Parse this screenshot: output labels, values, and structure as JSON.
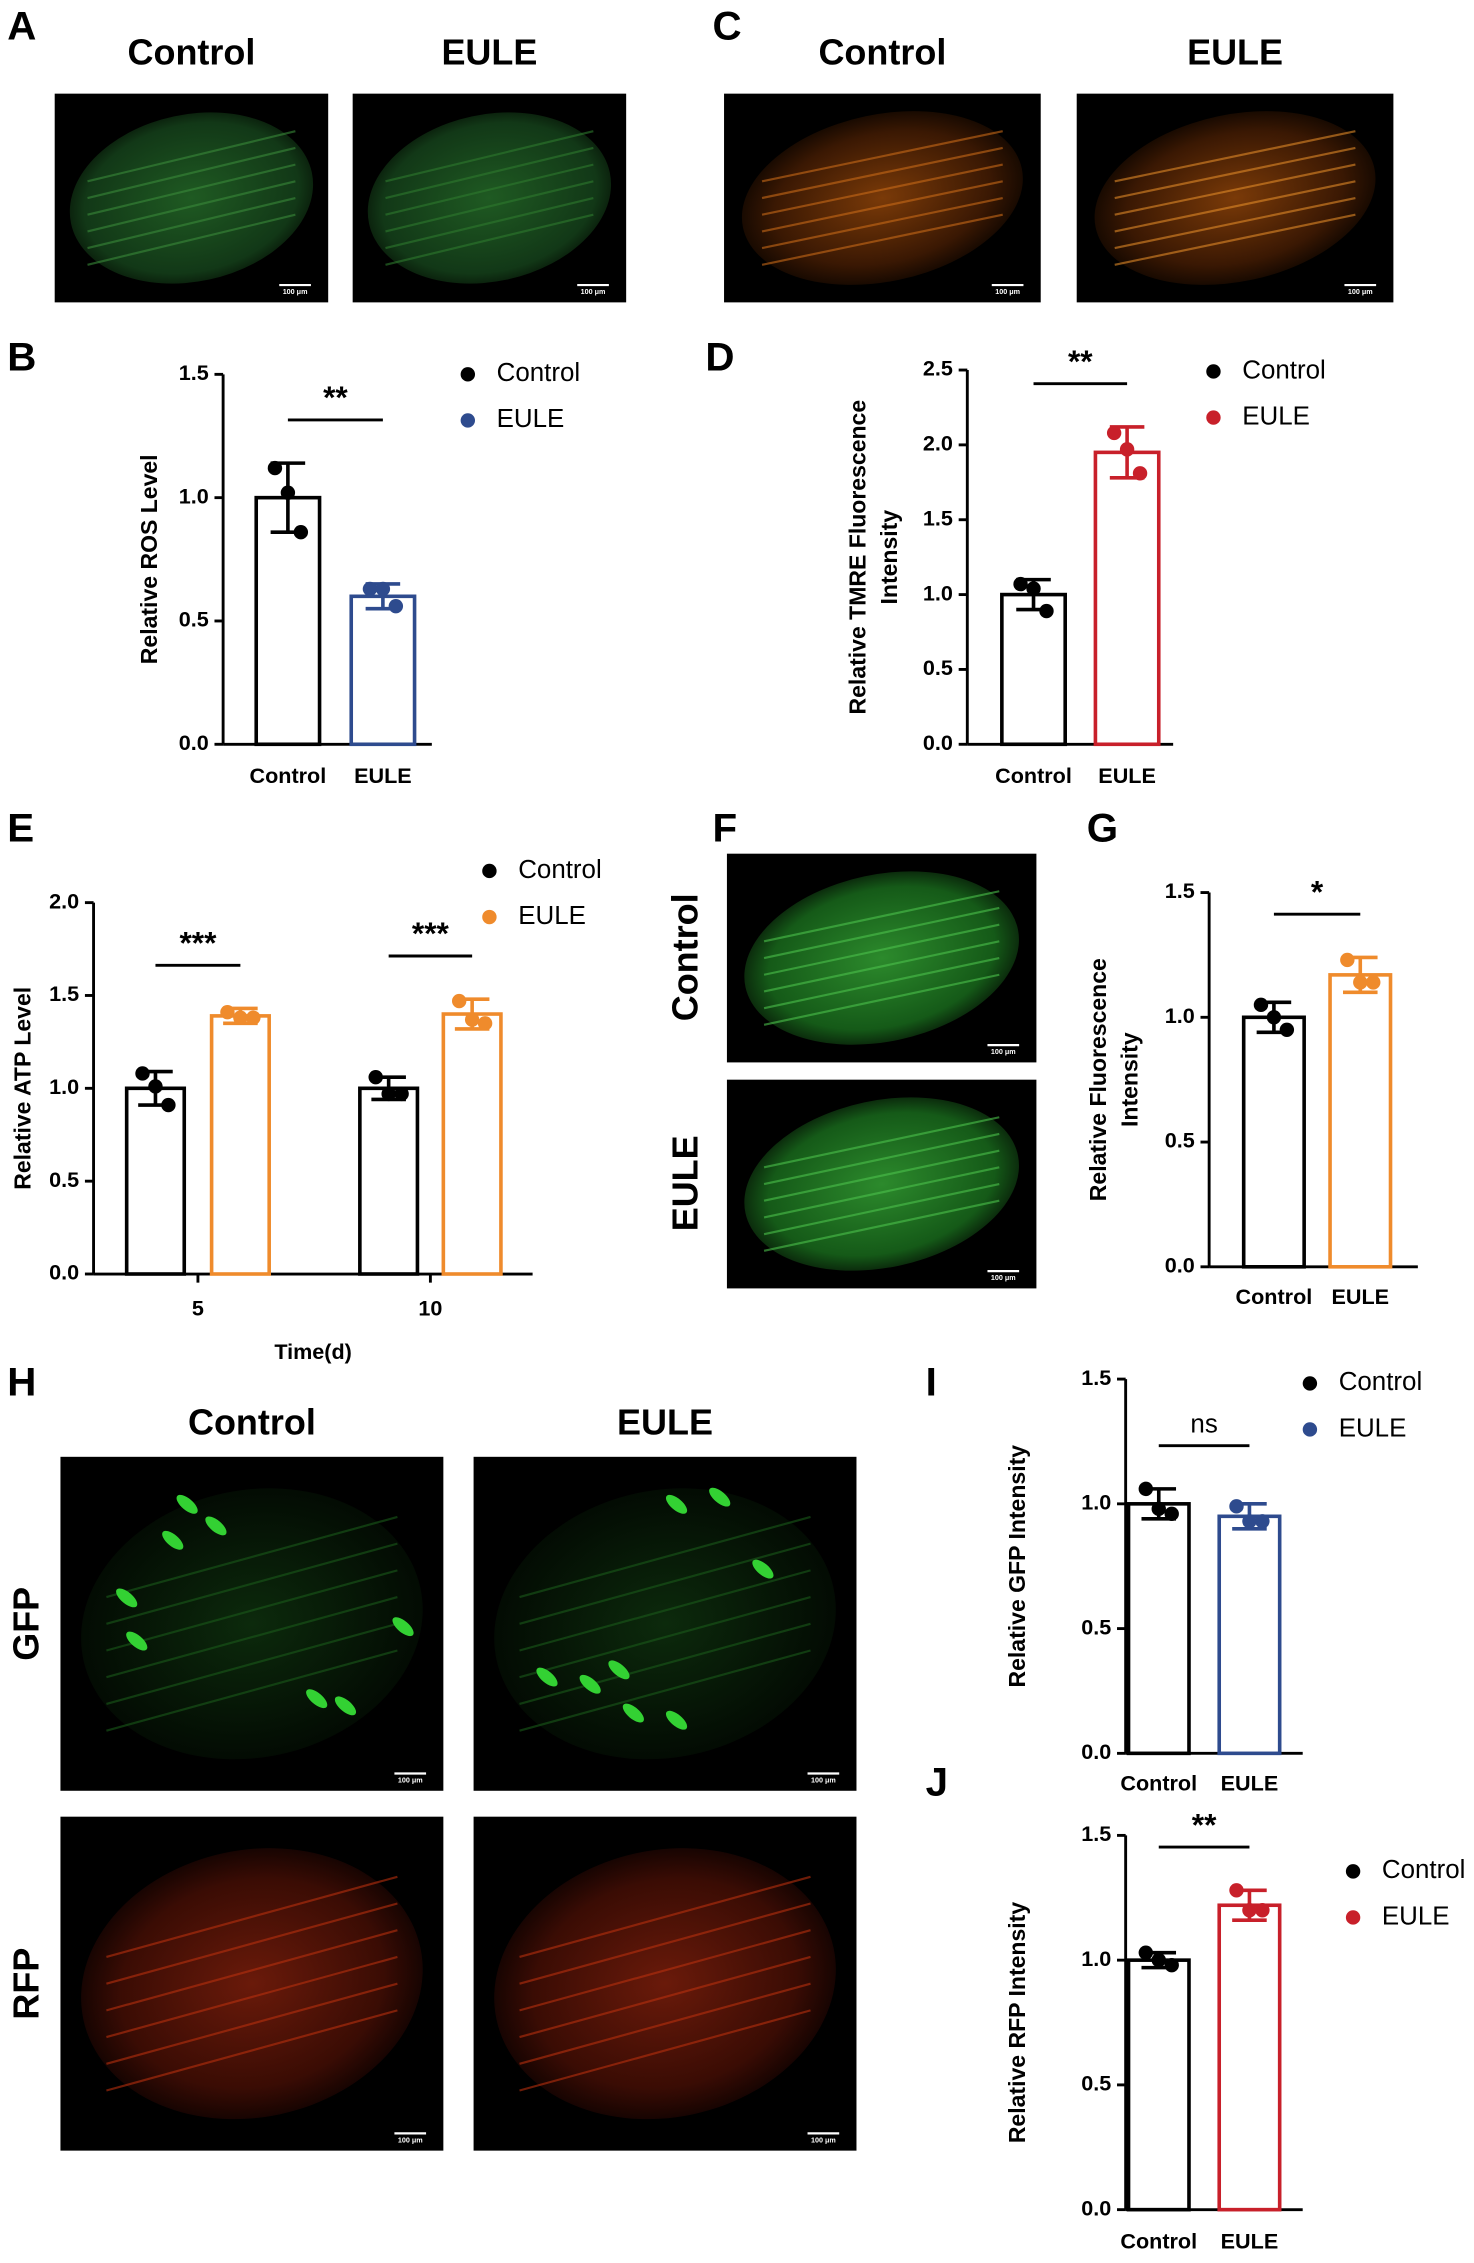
{
  "chart_data": [
    {
      "type": "bar",
      "panel": "B",
      "ylabel": "Relative ROS Level",
      "categories": [
        "Control",
        "EULE"
      ],
      "values": [
        1.0,
        0.6
      ],
      "errors": [
        0.14,
        0.05
      ],
      "points": [
        [
          1.12,
          1.02,
          0.86
        ],
        [
          0.63,
          0.63,
          0.56
        ]
      ],
      "colors": [
        "#000000",
        "#2e4b8e"
      ],
      "legend": true,
      "annotations": [
        "**"
      ],
      "ylim": [
        0,
        1.5
      ],
      "yticks": [
        {
          "value": 0,
          "label": "0.0"
        },
        0.5,
        {
          "value": 1,
          "label": "1.0"
        },
        1.5
      ]
    },
    {
      "type": "bar",
      "panel": "D",
      "ylabel": [
        "Relative TMRE Fluorescence",
        "Intensity"
      ],
      "categories": [
        "Control",
        "EULE"
      ],
      "values": [
        1.0,
        1.95
      ],
      "errors": [
        0.1,
        0.17
      ],
      "points": [
        [
          1.07,
          1.04,
          0.89
        ],
        [
          2.08,
          1.97,
          1.81
        ]
      ],
      "colors": [
        "#000000",
        "#c8202a"
      ],
      "legend": true,
      "annotations": [
        "**"
      ],
      "ylim": [
        0,
        2.5
      ],
      "yticks": [
        {
          "value": 0,
          "label": "0.0"
        },
        0.5,
        {
          "value": 1,
          "label": "1.0"
        },
        1.5,
        {
          "value": 2,
          "label": "2.0"
        },
        2.5
      ]
    },
    {
      "type": "grouped_bar",
      "panel": "E",
      "ylabel": "Relative ATP Level",
      "xlabel": "Time(d)",
      "categories": [
        "5",
        "10"
      ],
      "series": [
        {
          "name": "Control",
          "color": "#000000",
          "values": [
            1.0,
            1.0
          ],
          "errors": [
            0.09,
            0.06
          ],
          "points": [
            [
              1.08,
              1.01,
              0.91
            ],
            [
              1.06,
              0.97,
              0.97
            ]
          ]
        },
        {
          "name": "EULE",
          "color": "#ef8b2c",
          "values": [
            1.39,
            1.4
          ],
          "errors": [
            0.04,
            0.08
          ],
          "points": [
            [
              1.41,
              1.38,
              1.38
            ],
            [
              1.47,
              1.37,
              1.35
            ]
          ]
        }
      ],
      "annotations": [
        "***",
        "***"
      ],
      "ylim": [
        0,
        2
      ],
      "yticks": [
        {
          "value": 0,
          "label": "0.0"
        },
        0.5,
        {
          "value": 1,
          "label": "1.0"
        },
        1.5,
        {
          "value": 2,
          "label": "2.0"
        }
      ]
    },
    {
      "type": "bar",
      "panel": "G",
      "ylabel": [
        "Relative Fluorescence",
        "Intensity"
      ],
      "categories": [
        "Control",
        "EULE"
      ],
      "values": [
        1.0,
        1.17
      ],
      "errors": [
        0.06,
        0.07
      ],
      "points": [
        [
          1.05,
          1.0,
          0.95
        ],
        [
          1.23,
          1.14,
          1.14
        ]
      ],
      "colors": [
        "#000000",
        "#ef8b2c"
      ],
      "legend": false,
      "annotations": [
        "*"
      ],
      "ylim": [
        0,
        1.5
      ],
      "yticks": [
        {
          "value": 0,
          "label": "0.0"
        },
        0.5,
        {
          "value": 1,
          "label": "1.0"
        },
        1.5
      ]
    },
    {
      "type": "bar",
      "panel": "I",
      "ylabel": "Relative GFP Intensity",
      "categories": [
        "Control",
        "EULE"
      ],
      "values": [
        1.0,
        0.95
      ],
      "errors": [
        0.06,
        0.05
      ],
      "points": [
        [
          1.06,
          0.98,
          0.96
        ],
        [
          0.99,
          0.93,
          0.93
        ]
      ],
      "colors": [
        "#000000",
        "#2e4b8e"
      ],
      "legend": true,
      "annotations": [
        "ns"
      ],
      "ylim": [
        0,
        1.5
      ],
      "yticks": [
        {
          "value": 0,
          "label": "0.0"
        },
        0.5,
        {
          "value": 1,
          "label": "1.0"
        },
        1.5
      ]
    },
    {
      "type": "bar",
      "panel": "J",
      "ylabel": "Relative RFP Intensity",
      "categories": [
        "Control",
        "EULE"
      ],
      "values": [
        1.0,
        1.22
      ],
      "errors": [
        0.03,
        0.06
      ],
      "points": [
        [
          1.03,
          1.0,
          0.98
        ],
        [
          1.28,
          1.2,
          1.2
        ]
      ],
      "colors": [
        "#000000",
        "#c8202a"
      ],
      "legend": true,
      "annotations": [
        "**"
      ],
      "ylim": [
        0,
        1.5
      ],
      "yticks": [
        {
          "value": 0,
          "label": "0.0"
        },
        0.5,
        {
          "value": 1,
          "label": "1.0"
        },
        1.5
      ]
    }
  ],
  "image_panels": [
    {
      "panel": "A",
      "columns": [
        "Control",
        "EULE"
      ],
      "scale_bar": "100 μm"
    },
    {
      "panel": "C",
      "columns": [
        "Control",
        "EULE"
      ],
      "scale_bar": "100 μm"
    },
    {
      "panel": "F",
      "rows": [
        "Control",
        "EULE"
      ],
      "scale_bar": "100 μm"
    },
    {
      "panel": "H",
      "columns": [
        "Control",
        "EULE"
      ],
      "rows": [
        "GFP",
        "RFP"
      ],
      "scale_bar": "100 μm"
    }
  ]
}
